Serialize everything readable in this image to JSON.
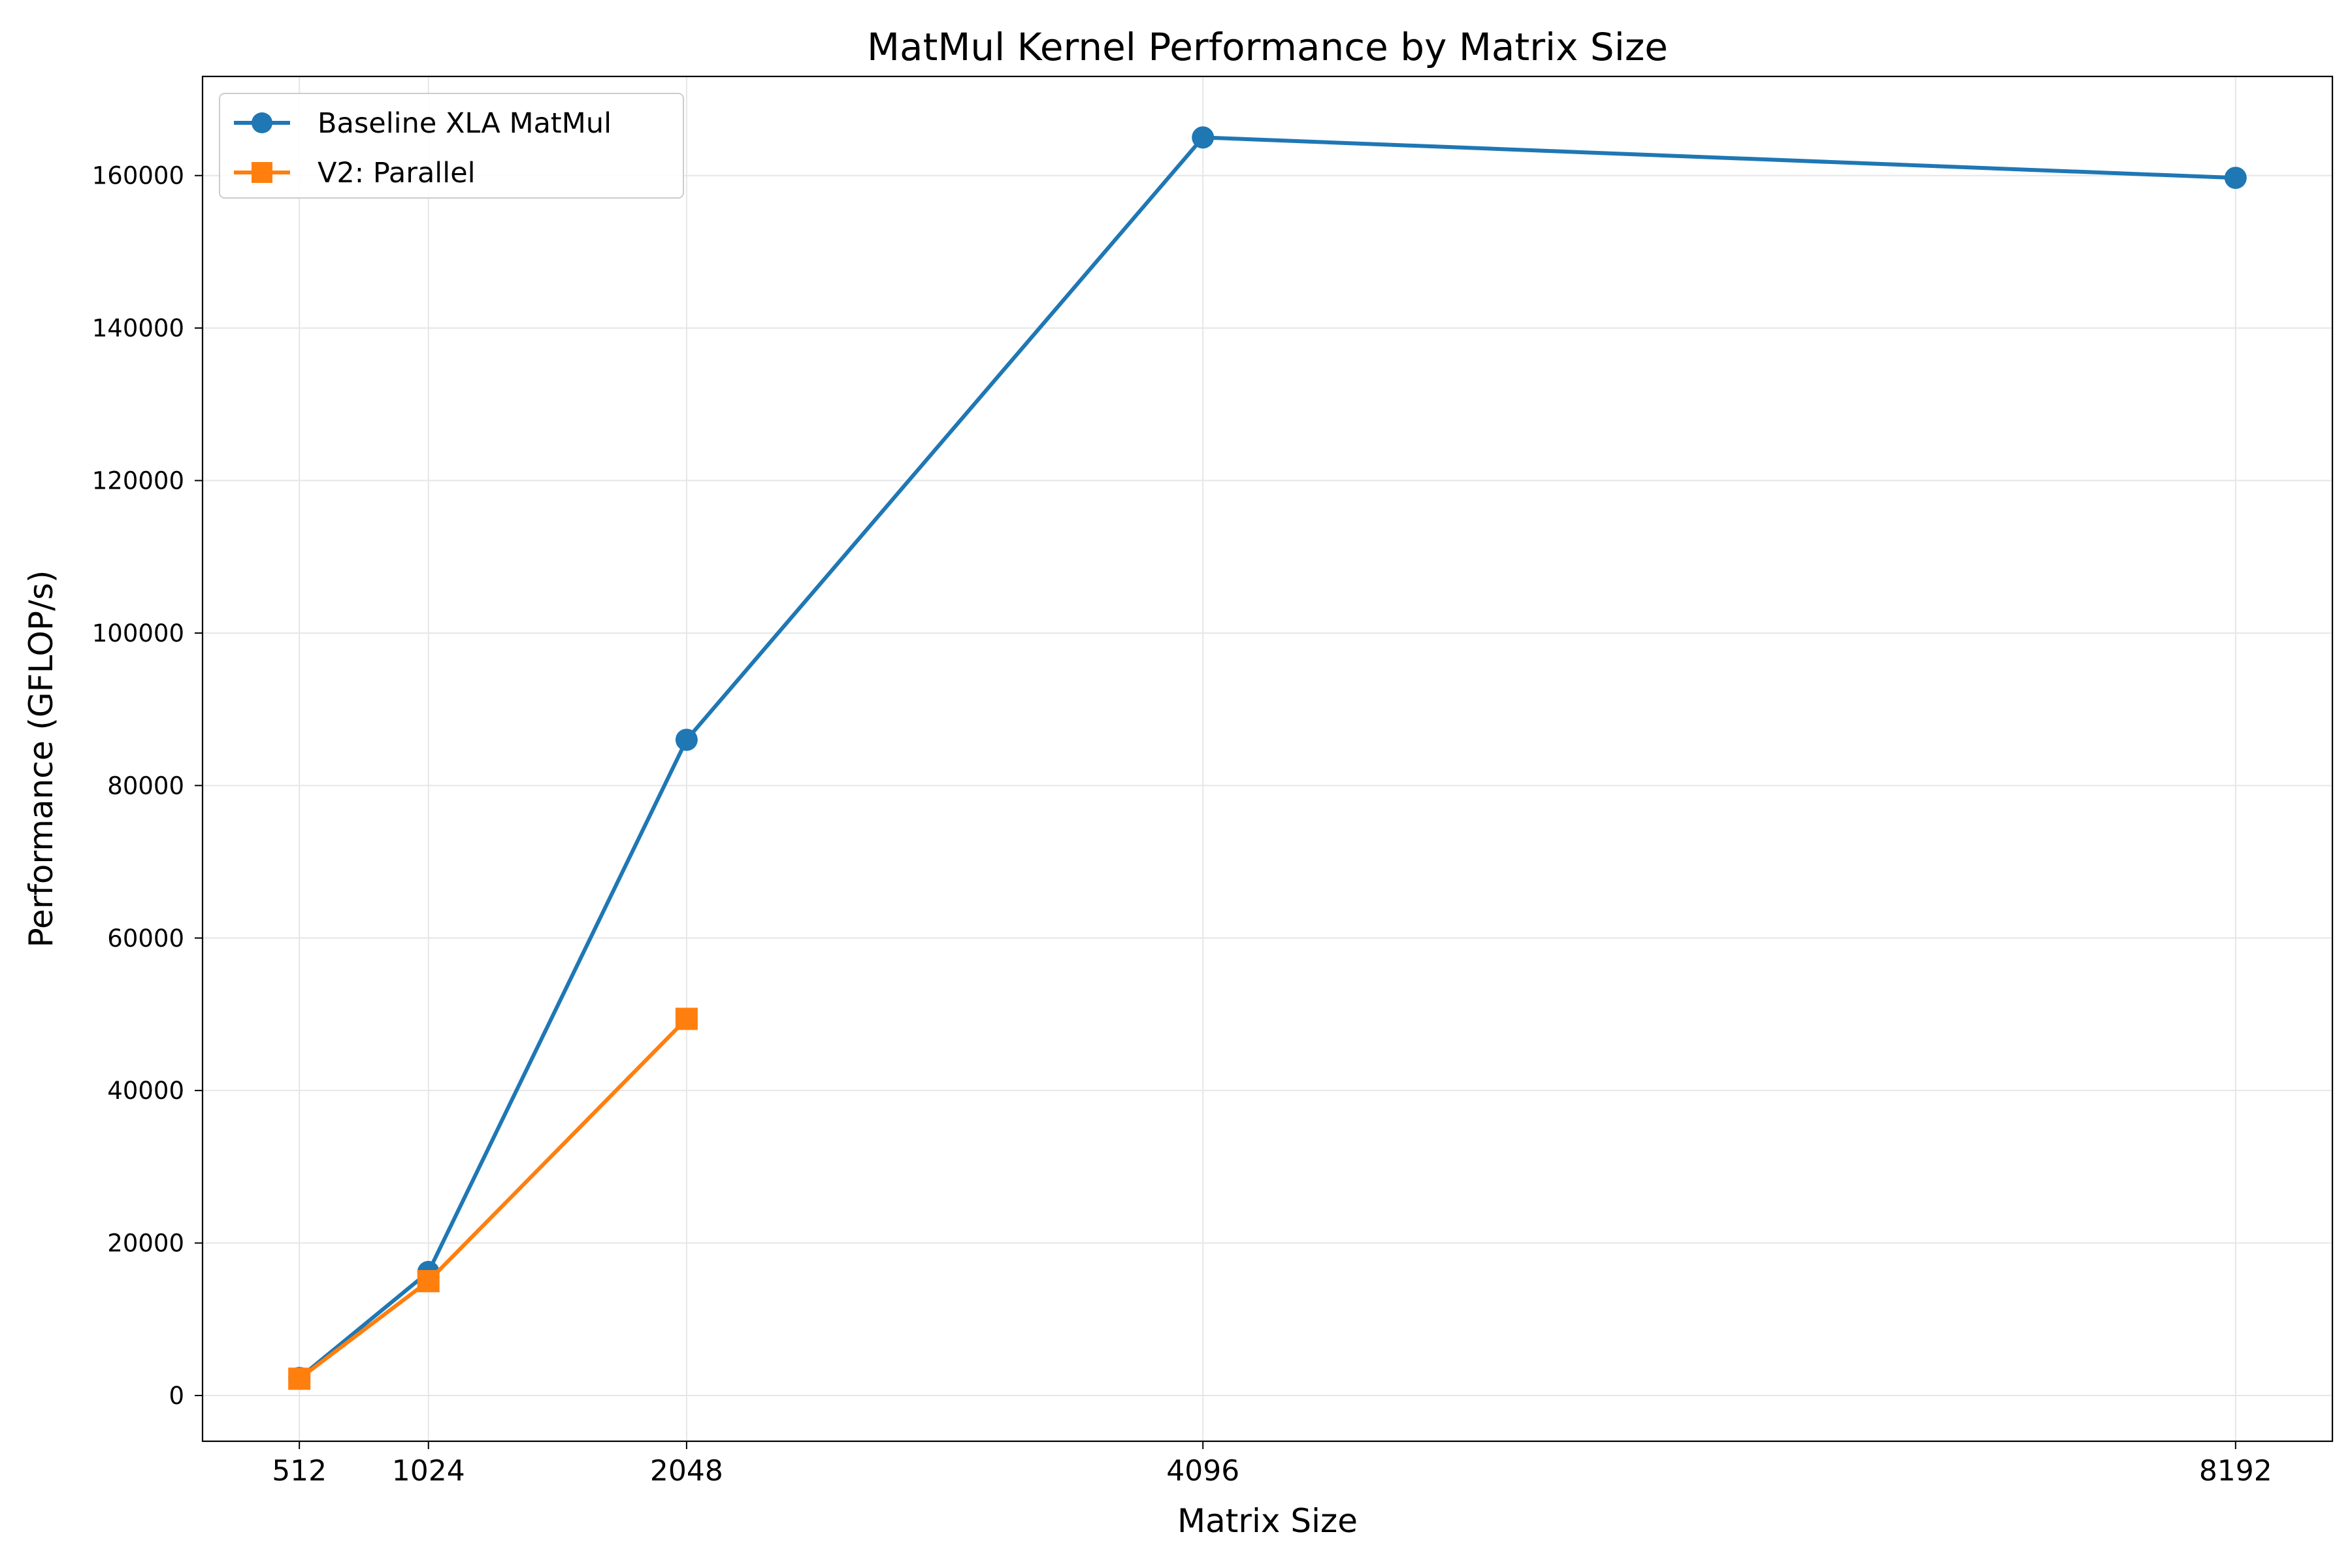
{
  "chart_data": {
    "type": "line",
    "title": "MatMul Kernel Performance by Matrix Size",
    "xlabel": "Matrix Size",
    "ylabel": "Performance (GFLOP/s)",
    "x_ticks": [
      512,
      1024,
      2048,
      4096,
      8192
    ],
    "x_tick_labels": [
      "512",
      "1024",
      "2048",
      "4096",
      "8192"
    ],
    "y_ticks": [
      0,
      20000,
      40000,
      60000,
      80000,
      100000,
      120000,
      140000,
      160000
    ],
    "y_tick_labels": [
      "0",
      "20000",
      "40000",
      "60000",
      "80000",
      "100000",
      "120000",
      "140000",
      "160000"
    ],
    "xlim": [
      128,
      8576
    ],
    "ylim": [
      -6000,
      173000
    ],
    "grid": true,
    "legend_position": "upper-left",
    "series": [
      {
        "name": "Baseline XLA MatMul",
        "color": "#1f77b4",
        "marker": "circle",
        "x": [
          512,
          1024,
          2048,
          4096,
          8192
        ],
        "y": [
          2300,
          16200,
          86000,
          165000,
          159700
        ]
      },
      {
        "name": "V2: Parallel",
        "color": "#ff7f0e",
        "marker": "square",
        "x": [
          512,
          1024,
          2048
        ],
        "y": [
          2200,
          15000,
          49400
        ]
      }
    ]
  }
}
